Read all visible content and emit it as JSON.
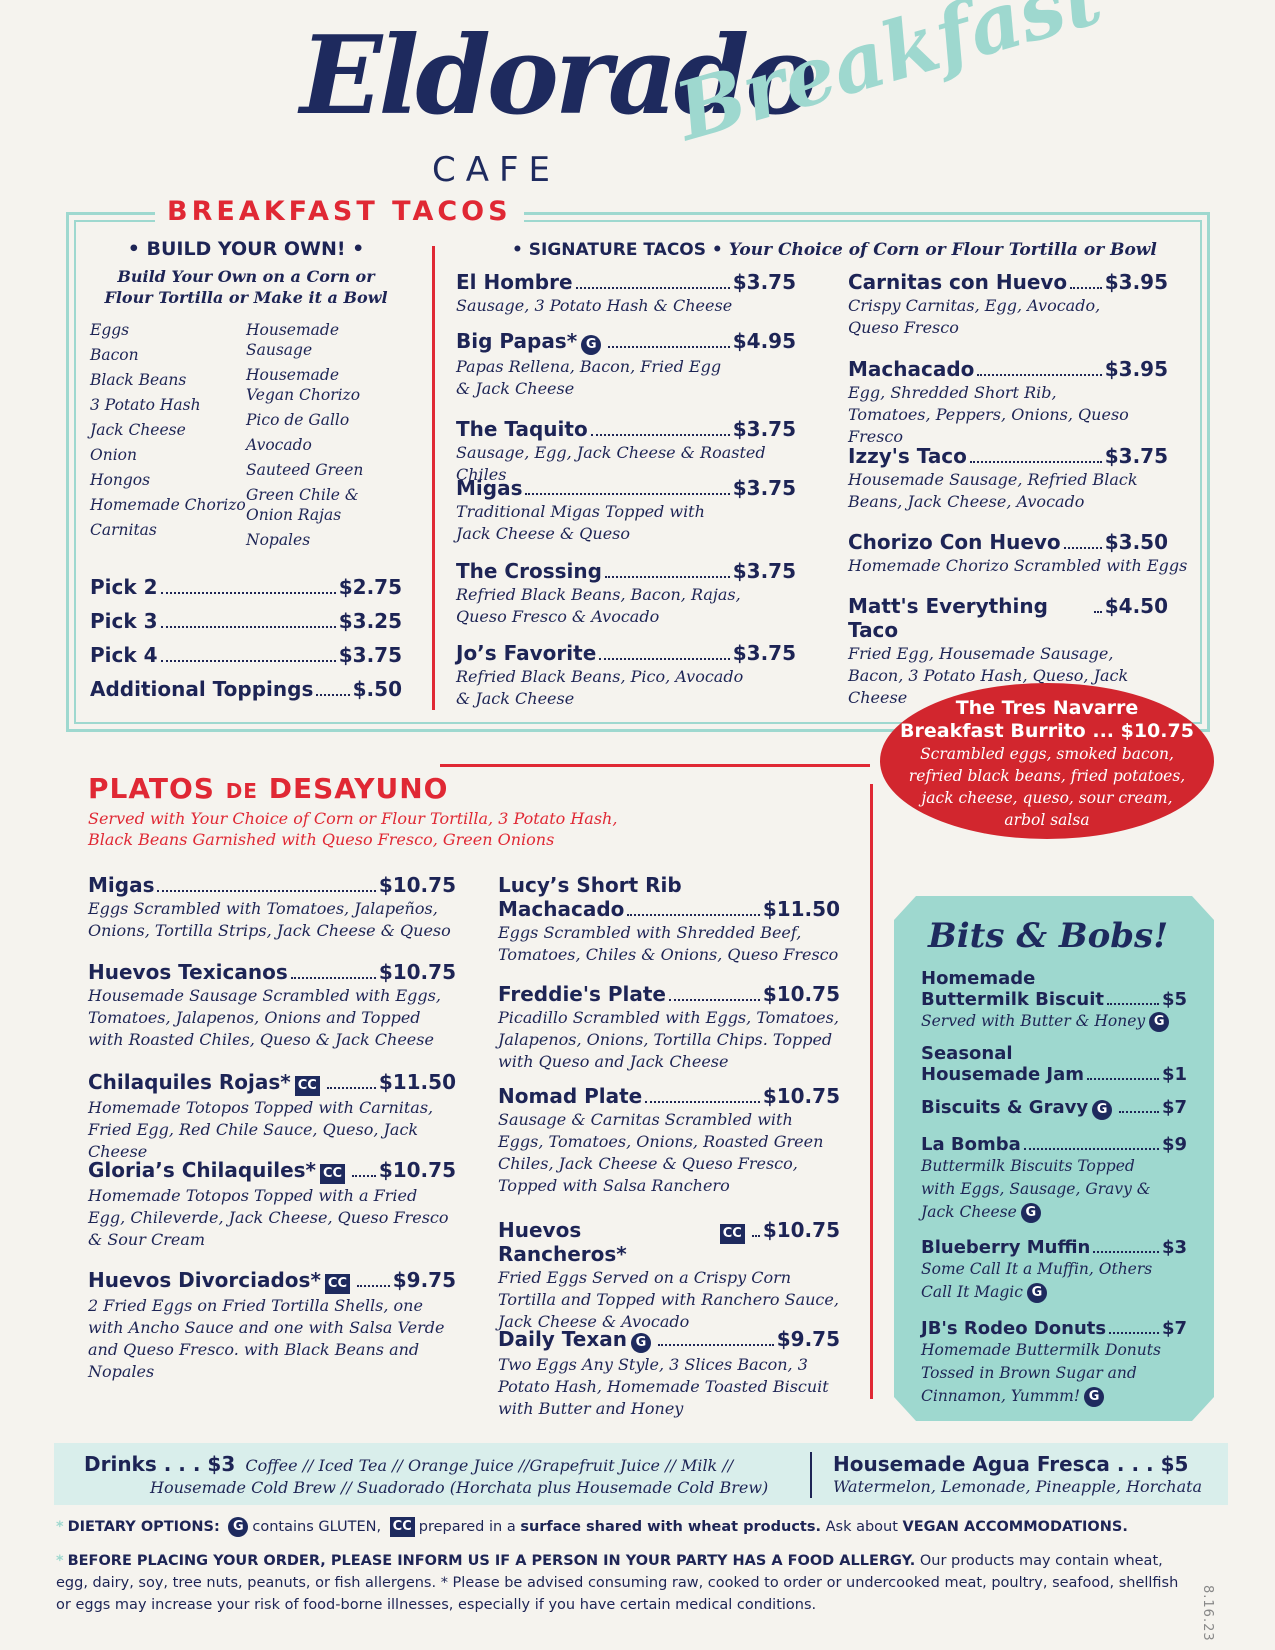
{
  "header": {
    "logo_main": "Eldorado",
    "logo_cafe": "CAFE",
    "logo_breakfast": "Breakfast"
  },
  "tacos": {
    "title": "BREAKFAST TACOS",
    "build": {
      "heading": "• BUILD YOUR OWN! •",
      "sub1": "Build Your Own on a Corn or",
      "sub2": "Flour Tortilla or Make it a Bowl",
      "toppings_left": [
        "Eggs",
        "Bacon",
        "Black Beans",
        "3 Potato Hash",
        "Jack Cheese",
        "Onion",
        "Hongos",
        "Homemade Chorizo",
        "Carnitas"
      ],
      "toppings_right": [
        "Housemade Sausage",
        "Housemade Vegan Chorizo",
        "Pico de Gallo",
        "Avocado",
        "Sauteed Green",
        "Green Chile & Onion Rajas",
        "Nopales"
      ],
      "prices": [
        {
          "label": "Pick 2",
          "price": "$2.75"
        },
        {
          "label": "Pick 3",
          "price": "$3.25"
        },
        {
          "label": "Pick 4",
          "price": "$3.75"
        },
        {
          "label": "Additional Toppings",
          "price": "$.50"
        }
      ]
    },
    "signature_heading": "• SIGNATURE TACOS •",
    "signature_sub": "Your Choice of Corn or Flour Tortilla or Bowl",
    "signature": [
      {
        "name": "El Hombre",
        "price": "$3.75",
        "desc": "Sausage, 3 Potato Hash & Cheese"
      },
      {
        "name": "Big Papas*",
        "price": "$4.95",
        "desc": "Papas Rellena, Bacon, Fried Egg & Jack Cheese"
      },
      {
        "name": "The Taquito",
        "price": "$3.75",
        "desc": "Sausage, Egg, Jack Cheese & Roasted Chiles"
      },
      {
        "name": "Migas",
        "price": "$3.75",
        "desc": "Traditional Migas Topped with Jack Cheese & Queso"
      },
      {
        "name": "The Crossing",
        "price": "$3.75",
        "desc": "Refried Black Beans, Bacon, Rajas, Queso Fresco & Avocado"
      },
      {
        "name": "Jo’s Favorite",
        "price": "$3.75",
        "desc": "Refried Black Beans, Pico, Avocado & Jack Cheese"
      },
      {
        "name": "Carnitas con Huevo",
        "price": "$3.95",
        "desc": "Crispy Carnitas, Egg, Avocado, Queso Fresco"
      },
      {
        "name": "Machacado",
        "price": "$3.95",
        "desc": "Egg, Shredded Short Rib, Tomatoes, Peppers, Onions, Queso Fresco"
      },
      {
        "name": "Izzy's Taco",
        "price": "$3.75",
        "desc": "Housemade Sausage, Refried Black Beans, Jack Cheese, Avocado"
      },
      {
        "name": "Chorizo Con Huevo",
        "price": "$3.50",
        "desc": "Homemade Chorizo Scrambled with Eggs"
      },
      {
        "name": "Matt's Everything Taco",
        "price": "$4.50",
        "desc": "Fried Egg, Housemade Sausage, Bacon, 3 Potato Hash, Queso, Jack Cheese"
      }
    ]
  },
  "burrito": {
    "line1": "The Tres Navarre",
    "line2": "Breakfast Burrito ... $10.75",
    "desc": "Scrambled eggs, smoked bacon, refried black beans, fried potatoes, jack cheese, queso, sour cream, arbol salsa"
  },
  "platos": {
    "title_a": "PLATOS ",
    "title_b": "DE",
    "title_c": " DESAYUNO",
    "sub1": "Served with Your Choice of Corn or Flour Tortilla, 3 Potato Hash,",
    "sub2": "Black Beans Garnished with Queso Fresco, Green Onions",
    "items": [
      {
        "name": "Migas",
        "price": "$10.75",
        "desc": "Eggs Scrambled with Tomatoes, Jalapeños, Onions, Tortilla Strips, Jack Cheese & Queso"
      },
      {
        "name": "Huevos Texicanos",
        "price": "$10.75",
        "desc": "Housemade Sausage Scrambled with Eggs, Tomatoes, Jalapenos, Onions and Topped with Roasted Chiles, Queso & Jack Cheese"
      },
      {
        "name": "Chilaquiles Rojas*",
        "price": "$11.50",
        "desc": "Homemade Totopos Topped with Carnitas, Fried Egg, Red Chile Sauce, Queso, Jack Cheese"
      },
      {
        "name": "Gloria’s Chilaquiles*",
        "price": "$10.75",
        "desc": "Homemade Totopos Topped with a Fried Egg, Chileverde, Jack Cheese, Queso Fresco & Sour Cream"
      },
      {
        "name": "Huevos Divorciados*",
        "price": "$9.75",
        "desc": "2 Fried Eggs on Fried Tortilla Shells, one with Ancho Sauce and one with Salsa Verde and Queso Fresco. with Black Beans and Nopales"
      },
      {
        "name1": "Lucy’s Short Rib",
        "name": "Machacado",
        "price": "$11.50",
        "desc": "Eggs Scrambled with Shredded Beef, Tomatoes, Chiles & Onions, Queso Fresco"
      },
      {
        "name": "Freddie's Plate",
        "price": "$10.75",
        "desc": "Picadillo Scrambled with Eggs, Tomatoes, Jalapenos, Onions, Tortilla Chips. Topped with Queso and Jack Cheese"
      },
      {
        "name": "Nomad Plate",
        "price": "$10.75",
        "desc": "Sausage & Carnitas Scrambled with Eggs, Tomatoes, Onions, Roasted Green Chiles, Jack Cheese & Queso Fresco, Topped with Salsa Ranchero"
      },
      {
        "name": "Huevos Rancheros*",
        "price": "$10.75",
        "desc": "Fried Eggs Served on a Crispy Corn Tortilla and Topped with Ranchero Sauce, Jack Cheese & Avocado"
      },
      {
        "name": "Daily Texan",
        "price": "$9.75",
        "desc": "Two Eggs Any Style, 3 Slices Bacon, 3 Potato Hash, Homemade Toasted Biscuit with Butter and Honey"
      }
    ]
  },
  "bits": {
    "title": "Bits & Bobs!",
    "items": [
      {
        "name1": "Homemade",
        "name": "Buttermilk Biscuit",
        "price": "$5",
        "desc": "Served with Butter & Honey"
      },
      {
        "name1": "Seasonal",
        "name": "Housemade Jam",
        "price": "$1",
        "desc": ""
      },
      {
        "name": "Biscuits & Gravy",
        "price": "$7",
        "desc": ""
      },
      {
        "name": "La Bomba",
        "price": "$9",
        "desc": "Buttermilk Biscuits Topped with Eggs, Sausage, Gravy & Jack Cheese"
      },
      {
        "name": "Blueberry Muffin",
        "price": "$3",
        "desc": "Some Call It a Muffin, Others Call It Magic"
      },
      {
        "name": "JB's Rodeo Donuts",
        "price": "$7",
        "desc": "Homemade Buttermilk Donuts Tossed in Brown Sugar and Cinnamon, Yummm!"
      }
    ]
  },
  "drinks": {
    "label": "Drinks . . . $3",
    "line1": "Coffee // Iced Tea  // Orange Juice //Grapefruit Juice // Milk //",
    "line2": "Housemade Cold Brew // Suadorado (Horchata plus Housemade Cold Brew)",
    "agua_label": "Housemade Agua Fresca . . . $5",
    "agua_desc": "Watermelon, Lemonade, Pineapple, Horchata"
  },
  "footer": {
    "dietary_label": "DIETARY OPTIONS:",
    "g_badge": "G",
    "cc_badge": "CC",
    "contains": "contains GLUTEN,",
    "prepared": "prepared in a",
    "surface": "surface shared with wheat products.",
    "ask": "Ask about",
    "vegan": "VEGAN ACCOMMODATIONS.",
    "allergy_caps": "BEFORE PLACING YOUR ORDER, PLEASE INFORM US IF A PERSON IN YOUR PARTY HAS A FOOD ALLERGY.",
    "allergy_rest": "Our products may contain wheat, egg, dairy, soy, tree nuts, peanuts, or fish allergens. * Please be advised consuming raw, cooked to order or undercooked meat, poultry, seafood, shellfish or eggs may increase your risk of food-borne illnesses, especially if you have certain medical conditions.",
    "date": "8.16.23"
  }
}
